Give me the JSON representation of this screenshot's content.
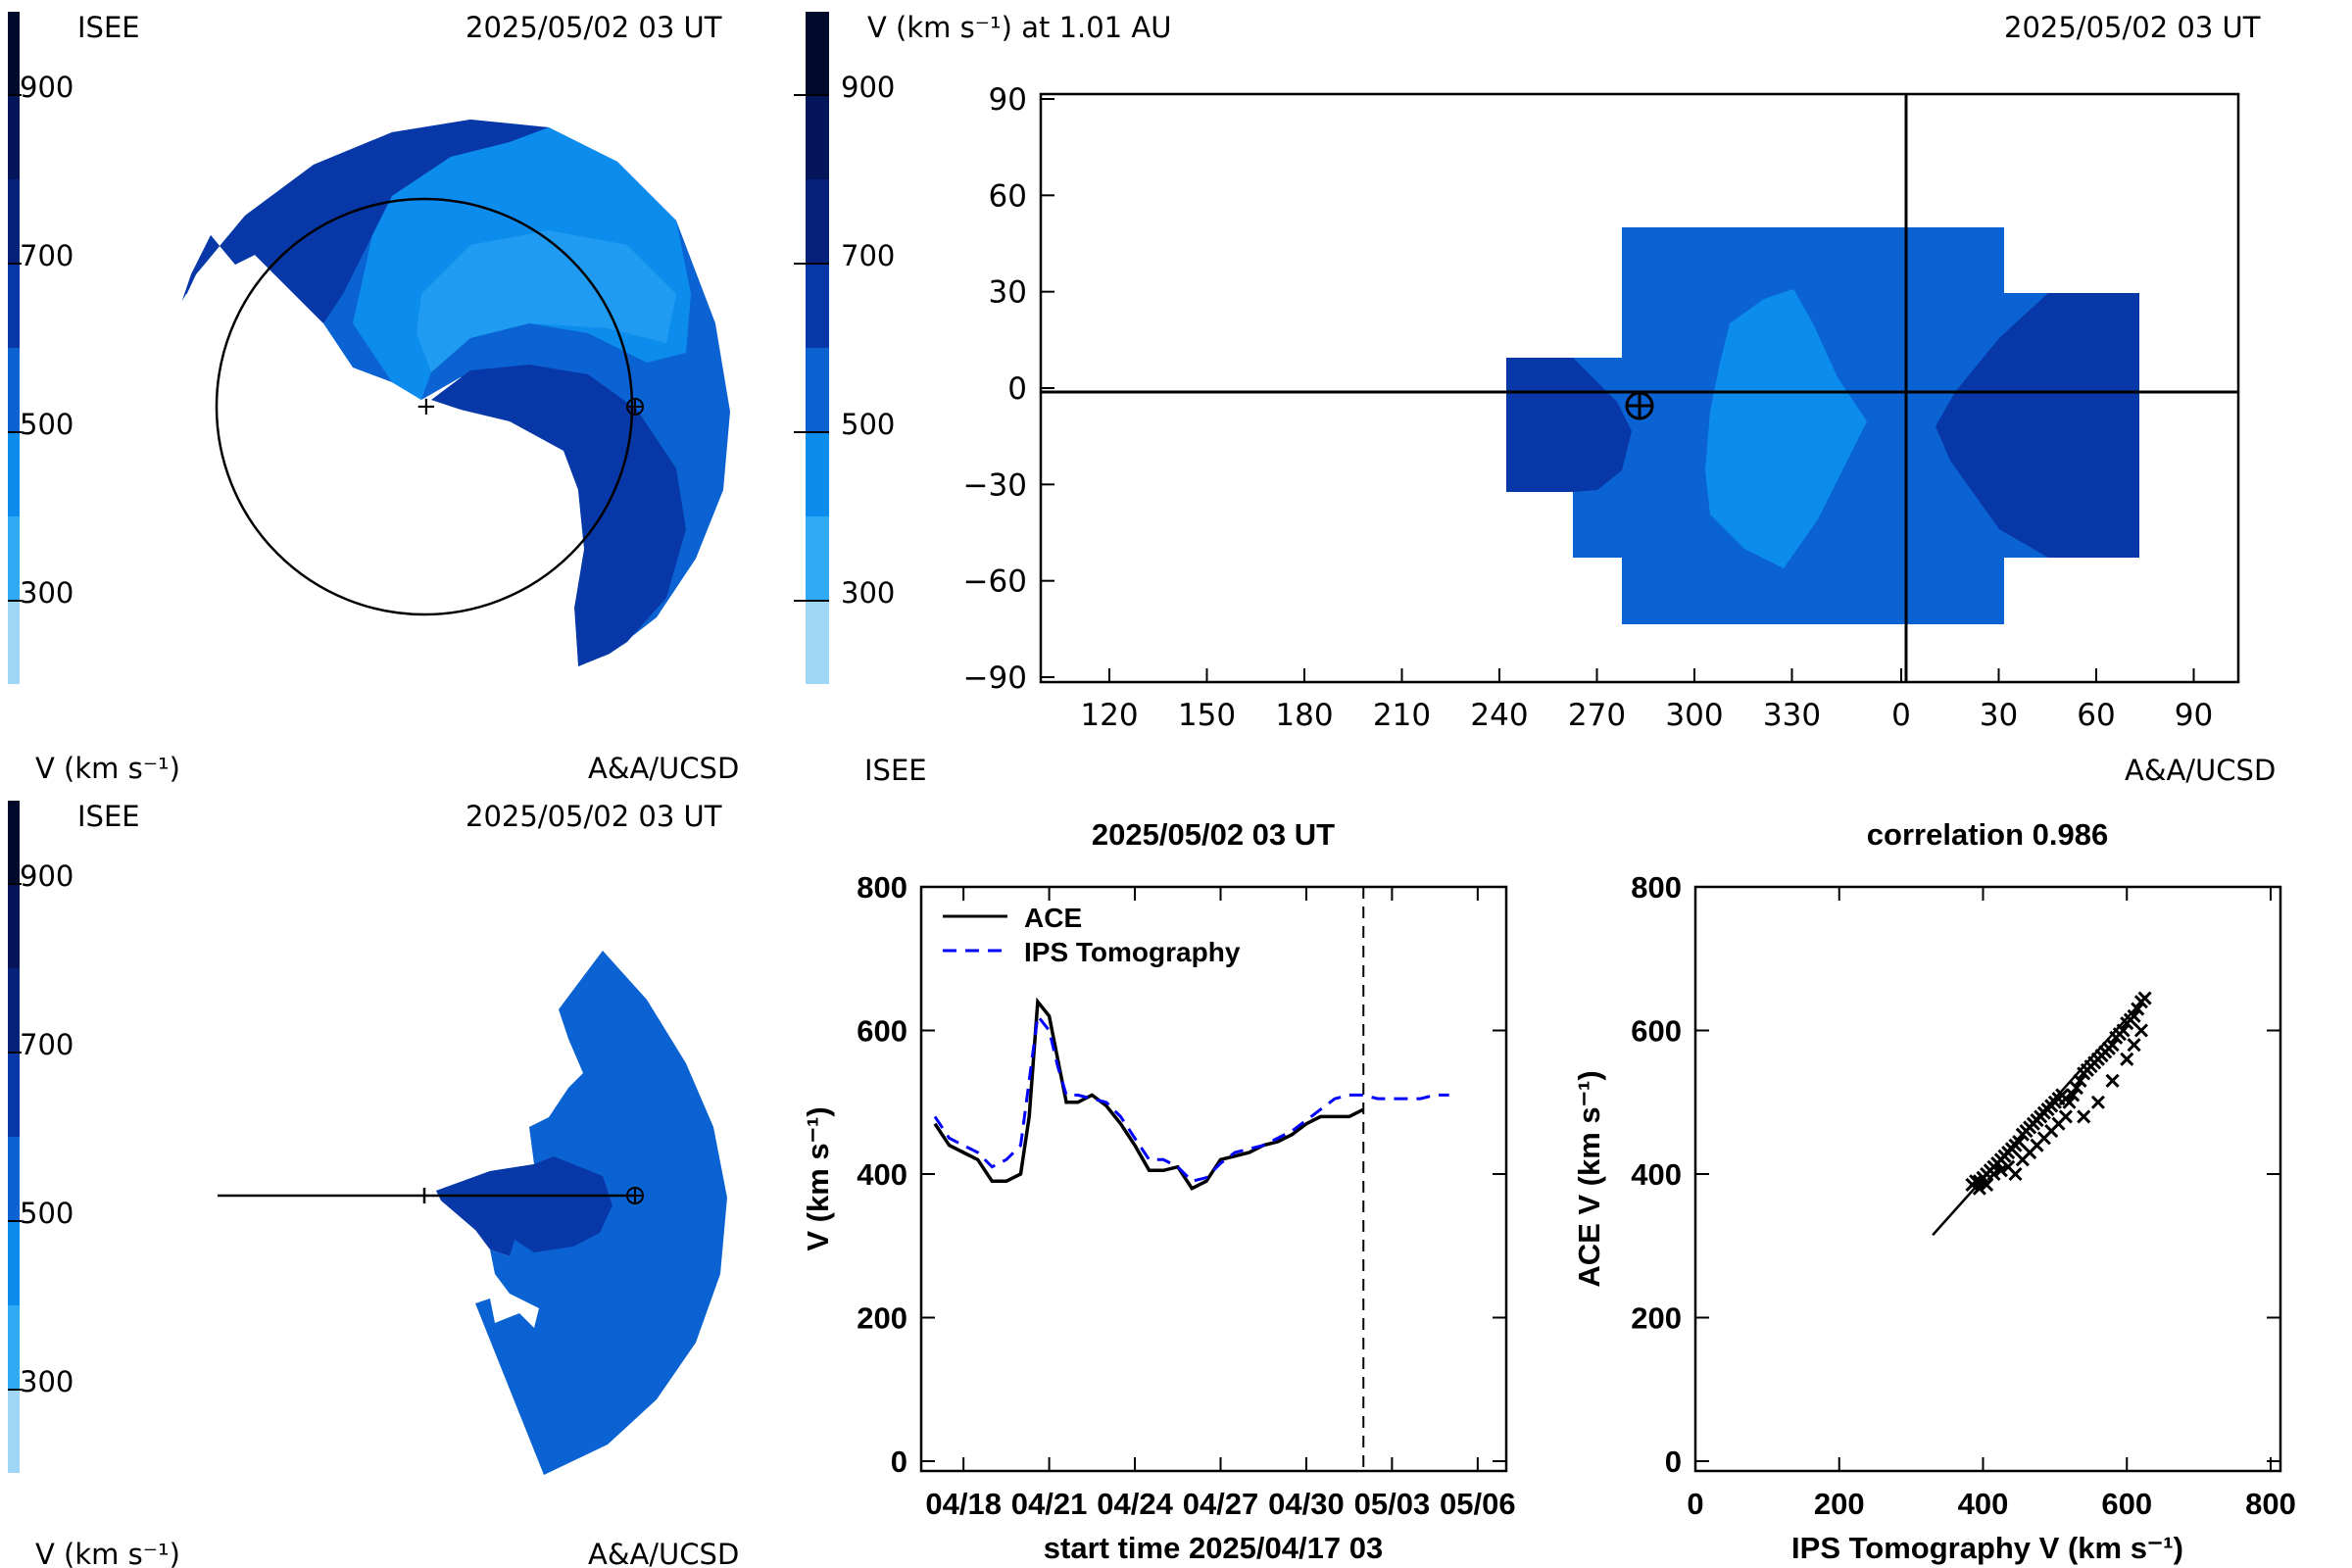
{
  "colors": {
    "c200": "#9fd6f6",
    "c300": "#30aaf4",
    "c400": "#0c8ced",
    "c500": "#0b62d2",
    "c600": "#0838a8",
    "c700": "#06217a",
    "c800": "#041659",
    "c900": "#020a2c",
    "ace": "#000000",
    "ips": "#0000ff"
  },
  "panel_tl": {
    "org_label": "ISEE",
    "timestamp": "2025/05/02 03 UT",
    "colorbar_ticks": [
      "900",
      "700",
      "500",
      "300"
    ],
    "unit_label": "V (km s⁻¹)",
    "credit": "A&A/UCSD"
  },
  "panel_tr": {
    "title": "V (km s⁻¹) at 1.01 AU",
    "timestamp": "2025/05/02 03 UT",
    "colorbar_ticks": [
      "900",
      "700",
      "500",
      "300"
    ],
    "org_label": "ISEE",
    "credit": "A&A/UCSD"
  },
  "panel_bl": {
    "org_label": "ISEE",
    "timestamp": "2025/05/02 03 UT",
    "colorbar_ticks": [
      "900",
      "700",
      "500",
      "300"
    ],
    "unit_label": "V (km s⁻¹)",
    "credit": "A&A/UCSD"
  },
  "chart_data": [
    {
      "type": "heatmap",
      "panel": "top-right",
      "title": "V (km s⁻¹) at 1.01 AU",
      "x_tick_labels": [
        "120",
        "150",
        "180",
        "210",
        "240",
        "270",
        "300",
        "330",
        "0",
        "30",
        "60",
        "90"
      ],
      "y_tick_labels": [
        "90",
        "60",
        "30",
        "0",
        "−30",
        "−60",
        "−90"
      ],
      "ylim": [
        -90,
        90
      ],
      "regions_speed_kms": {
        "dark_band_left": 550,
        "middle_band": 450,
        "light_core": 350,
        "dark_band_right": 550
      },
      "earth_position": {
        "lon": 280,
        "lat": -4
      }
    },
    {
      "type": "line",
      "panel": "bottom-middle",
      "title": "2025/05/02 03 UT",
      "xlabel": "start time 2025/04/17 03",
      "ylabel": "V (km s⁻¹)",
      "x_tick_labels": [
        "04/18",
        "04/21",
        "04/24",
        "04/27",
        "04/30",
        "05/03",
        "05/06"
      ],
      "x_tick_days": [
        1,
        4,
        7,
        10,
        13,
        16,
        19
      ],
      "y_ticks": [
        0,
        200,
        400,
        600,
        800
      ],
      "xlim": [
        0,
        20
      ],
      "ylim": [
        0,
        800
      ],
      "current_time_day": 15,
      "series": [
        {
          "name": "ACE",
          "style": "solid",
          "x": [
            0,
            0.5,
            1,
            1.5,
            2,
            2.5,
            3,
            3.3,
            3.6,
            4,
            4.3,
            4.6,
            5,
            5.5,
            6,
            6.5,
            7,
            7.5,
            8,
            8.5,
            9,
            9.5,
            10,
            10.5,
            11,
            11.5,
            12,
            12.5,
            13,
            13.5,
            14,
            14.5,
            15
          ],
          "y": [
            470,
            440,
            430,
            420,
            390,
            390,
            400,
            480,
            640,
            620,
            560,
            500,
            500,
            510,
            495,
            470,
            440,
            405,
            405,
            410,
            380,
            390,
            420,
            425,
            430,
            440,
            445,
            455,
            470,
            480,
            480,
            480,
            490
          ]
        },
        {
          "name": "IPS Tomography",
          "style": "dashed",
          "x": [
            0,
            0.5,
            1,
            1.5,
            2,
            2.5,
            3,
            3.3,
            3.6,
            4,
            4.3,
            4.6,
            5,
            5.5,
            6,
            6.5,
            7,
            7.5,
            8,
            8.5,
            9,
            9.5,
            10,
            10.5,
            11,
            11.5,
            12,
            12.5,
            13,
            13.5,
            14,
            14.5,
            15,
            15.5,
            16,
            16.5,
            17,
            17.5,
            18
          ],
          "y": [
            480,
            450,
            440,
            430,
            410,
            420,
            440,
            530,
            620,
            600,
            550,
            510,
            510,
            505,
            500,
            480,
            450,
            420,
            420,
            410,
            390,
            395,
            415,
            430,
            435,
            440,
            450,
            460,
            475,
            490,
            505,
            510,
            510,
            505,
            505,
            505,
            505,
            510,
            510
          ]
        }
      ]
    },
    {
      "type": "scatter",
      "panel": "bottom-right",
      "title": "correlation 0.986",
      "xlabel": "IPS Tomography V (km s⁻¹)",
      "ylabel": "ACE V (km s⁻¹)",
      "x_ticks": [
        0,
        200,
        400,
        600,
        800
      ],
      "y_ticks": [
        0,
        200,
        400,
        600,
        800
      ],
      "xlim": [
        0,
        800
      ],
      "ylim": [
        0,
        800
      ],
      "fit_line": {
        "x": [
          330,
          625
        ],
        "y": [
          315,
          645
        ]
      },
      "points": {
        "x": [
          385,
          390,
          395,
          400,
          405,
          410,
          415,
          420,
          425,
          430,
          435,
          440,
          445,
          450,
          455,
          460,
          465,
          470,
          475,
          480,
          485,
          490,
          495,
          500,
          505,
          510,
          515,
          520,
          525,
          530,
          535,
          540,
          545,
          550,
          555,
          560,
          565,
          570,
          575,
          580,
          585,
          590,
          595,
          600,
          605,
          610,
          615,
          620,
          625,
          395,
          405,
          415,
          425,
          435,
          445,
          455,
          465,
          475,
          485,
          495,
          505,
          515,
          540,
          560,
          580,
          600,
          610,
          620
        ],
        "y": [
          385,
          390,
          390,
          395,
          400,
          405,
          410,
          415,
          420,
          425,
          430,
          435,
          440,
          445,
          455,
          460,
          465,
          470,
          475,
          480,
          485,
          490,
          495,
          500,
          505,
          510,
          505,
          500,
          510,
          520,
          530,
          540,
          545,
          550,
          555,
          560,
          565,
          570,
          575,
          580,
          590,
          595,
          600,
          610,
          615,
          620,
          630,
          640,
          645,
          380,
          385,
          400,
          405,
          410,
          400,
          420,
          430,
          440,
          450,
          460,
          470,
          480,
          480,
          500,
          530,
          560,
          580,
          600
        ]
      }
    }
  ]
}
